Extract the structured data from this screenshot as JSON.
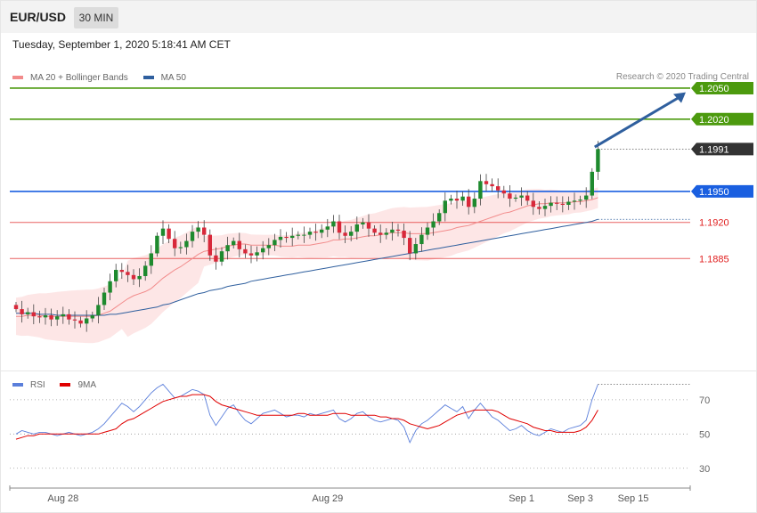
{
  "header": {
    "symbol": "EUR/USD",
    "timeframe": "30 MIN",
    "timestamp": "Tuesday, September 1, 2020 5:18:41 AM CET"
  },
  "legend": {
    "main": [
      {
        "label": "MA 20 + Bollinger Bands",
        "color": "#f28b8b"
      },
      {
        "label": "MA 50",
        "color": "#2f5f9e"
      }
    ],
    "rsi": [
      {
        "label": "RSI",
        "color": "#5b7fdb"
      },
      {
        "label": "9MA",
        "color": "#e00000"
      }
    ]
  },
  "credit": "Research © 2020 Trading Central",
  "chart_data": [
    {
      "type": "candlestick",
      "ylim": [
        1.178,
        1.2075
      ],
      "current_price": {
        "label": "1.1991",
        "value": 1.1991,
        "color": "#333333"
      },
      "levels": [
        {
          "label": "1.2050",
          "value": 1.205,
          "color": "#4c9a0e",
          "role": "resistance"
        },
        {
          "label": "1.2020",
          "value": 1.202,
          "color": "#4c9a0e",
          "role": "resistance"
        },
        {
          "label": "1.1950",
          "value": 1.195,
          "color": "#1a5fe0",
          "role": "pivot"
        },
        {
          "label": "1.1920",
          "value": 1.192,
          "color": "#e02020",
          "role": "support"
        },
        {
          "label": "1.1885",
          "value": 1.1885,
          "color": "#e02020",
          "role": "support"
        }
      ],
      "arrow": {
        "from_index": 98,
        "from_value": 1.1993,
        "to_value": 1.2046,
        "color": "#2f5f9e"
      },
      "closes": [
        1.1836,
        1.1831,
        1.1833,
        1.1829,
        1.1828,
        1.183,
        1.1826,
        1.1829,
        1.1831,
        1.1826,
        1.1825,
        1.1822,
        1.1827,
        1.183,
        1.184,
        1.1852,
        1.1863,
        1.1874,
        1.1872,
        1.1869,
        1.1865,
        1.1868,
        1.1878,
        1.189,
        1.1907,
        1.1914,
        1.1904,
        1.1895,
        1.1896,
        1.1902,
        1.1911,
        1.1915,
        1.1908,
        1.1888,
        1.1882,
        1.1892,
        1.1898,
        1.1902,
        1.1894,
        1.189,
        1.1888,
        1.1891,
        1.1895,
        1.1898,
        1.1903,
        1.1906,
        1.1905,
        1.1907,
        1.1908,
        1.1908,
        1.1911,
        1.191,
        1.1913,
        1.1916,
        1.1921,
        1.191,
        1.1907,
        1.1911,
        1.1918,
        1.192,
        1.1914,
        1.191,
        1.1908,
        1.191,
        1.1913,
        1.1912,
        1.1905,
        1.189,
        1.1899,
        1.1908,
        1.1915,
        1.1921,
        1.1929,
        1.1941,
        1.1943,
        1.1941,
        1.1945,
        1.1935,
        1.1943,
        1.196,
        1.1957,
        1.1955,
        1.1951,
        1.1948,
        1.1943,
        1.1944,
        1.1946,
        1.1941,
        1.1935,
        1.1933,
        1.1936,
        1.1939,
        1.1938,
        1.1937,
        1.194,
        1.1941,
        1.1942,
        1.1946,
        1.1969,
        1.1991
      ],
      "ma20": [
        1.1829,
        1.1829,
        1.183,
        1.183,
        1.183,
        1.1829,
        1.1829,
        1.1829,
        1.1829,
        1.1829,
        1.1829,
        1.1829,
        1.1829,
        1.1829,
        1.183,
        1.1832,
        1.1834,
        1.1838,
        1.1842,
        1.1846,
        1.1849,
        1.1851,
        1.1853,
        1.1856,
        1.1861,
        1.1866,
        1.187,
        1.1874,
        1.1877,
        1.1881,
        1.1885,
        1.1889,
        1.1892,
        1.1893,
        1.1894,
        1.1895,
        1.1897,
        1.1898,
        1.1899,
        1.1899,
        1.1898,
        1.1898,
        1.1898,
        1.1898,
        1.1898,
        1.1897,
        1.1897,
        1.1897,
        1.1898,
        1.1898,
        1.1898,
        1.1899,
        1.19,
        1.1901,
        1.1903,
        1.1903,
        1.1904,
        1.1904,
        1.1905,
        1.1906,
        1.1907,
        1.1907,
        1.1908,
        1.1909,
        1.191,
        1.191,
        1.191,
        1.1909,
        1.1909,
        1.1909,
        1.1909,
        1.191,
        1.1911,
        1.1912,
        1.1913,
        1.1915,
        1.1916,
        1.1917,
        1.1919,
        1.1921,
        1.1923,
        1.1925,
        1.1927,
        1.1929,
        1.193,
        1.1932,
        1.1934,
        1.1936,
        1.1937,
        1.1938,
        1.1938,
        1.1939,
        1.1939,
        1.1939,
        1.1939,
        1.194,
        1.194,
        1.1941,
        1.1942,
        1.1944
      ],
      "ma50": [
        1.1832,
        1.1832,
        1.1832,
        1.1832,
        1.1831,
        1.1831,
        1.1831,
        1.183,
        1.183,
        1.183,
        1.183,
        1.183,
        1.183,
        1.183,
        1.183,
        1.183,
        1.1831,
        1.1831,
        1.1832,
        1.1833,
        1.1834,
        1.1835,
        1.1836,
        1.1837,
        1.1838,
        1.184,
        1.1841,
        1.1843,
        1.1845,
        1.1847,
        1.1849,
        1.1851,
        1.1852,
        1.1854,
        1.1855,
        1.1856,
        1.1858,
        1.1859,
        1.186,
        1.1861,
        1.1863,
        1.1864,
        1.1865,
        1.1866,
        1.1867,
        1.1868,
        1.1869,
        1.187,
        1.1871,
        1.1872,
        1.1873,
        1.1874,
        1.1875,
        1.1876,
        1.1877,
        1.1878,
        1.1879,
        1.188,
        1.1881,
        1.1882,
        1.1883,
        1.1884,
        1.1885,
        1.1886,
        1.1887,
        1.1888,
        1.1889,
        1.189,
        1.1891,
        1.1892,
        1.1893,
        1.1894,
        1.1895,
        1.1896,
        1.1897,
        1.1898,
        1.1899,
        1.19,
        1.1901,
        1.1902,
        1.1903,
        1.1904,
        1.1905,
        1.1906,
        1.1907,
        1.1908,
        1.1909,
        1.191,
        1.1911,
        1.1912,
        1.1913,
        1.1914,
        1.1915,
        1.1916,
        1.1917,
        1.1918,
        1.1919,
        1.192,
        1.1921,
        1.1923
      ]
    },
    {
      "type": "line",
      "ylim": [
        20,
        85
      ],
      "ticks": [
        {
          "label": "70",
          "value": 70
        },
        {
          "label": "50",
          "value": 50
        },
        {
          "label": "30",
          "value": 30
        }
      ],
      "rsi": [
        50,
        52,
        51,
        50,
        51,
        51,
        50,
        49,
        50,
        51,
        50,
        49,
        50,
        51,
        53,
        56,
        60,
        64,
        68,
        66,
        63,
        66,
        70,
        74,
        77,
        79,
        75,
        71,
        72,
        74,
        76,
        75,
        73,
        61,
        55,
        60,
        65,
        67,
        62,
        58,
        56,
        59,
        62,
        63,
        64,
        62,
        60,
        61,
        61,
        60,
        62,
        61,
        62,
        63,
        64,
        59,
        57,
        59,
        62,
        63,
        60,
        58,
        57,
        58,
        59,
        58,
        54,
        45,
        52,
        56,
        58,
        61,
        64,
        67,
        65,
        63,
        66,
        59,
        64,
        68,
        64,
        60,
        58,
        55,
        52,
        53,
        55,
        52,
        50,
        49,
        51,
        53,
        52,
        51,
        53,
        54,
        55,
        58,
        70,
        79
      ],
      "ma9": [
        47,
        48,
        49,
        49,
        50,
        50,
        50,
        50,
        50,
        50,
        50,
        50,
        50,
        50,
        50,
        51,
        52,
        53,
        56,
        58,
        59,
        61,
        63,
        65,
        67,
        69,
        70,
        71,
        72,
        72,
        73,
        73,
        73,
        72,
        69,
        67,
        66,
        65,
        64,
        63,
        62,
        61,
        61,
        61,
        61,
        61,
        61,
        61,
        62,
        62,
        61,
        61,
        61,
        61,
        62,
        62,
        62,
        61,
        61,
        61,
        61,
        61,
        60,
        60,
        59,
        59,
        58,
        56,
        55,
        54,
        53,
        54,
        55,
        57,
        59,
        61,
        62,
        63,
        64,
        64,
        64,
        64,
        63,
        61,
        59,
        58,
        57,
        56,
        54,
        53,
        52,
        52,
        51,
        51,
        51,
        51,
        52,
        54,
        58,
        64
      ]
    }
  ],
  "x_axis": [
    {
      "label": "Aug 28",
      "index": 8
    },
    {
      "label": "Aug 29",
      "index": 53
    },
    {
      "label": "Sep 1",
      "index": 86
    },
    {
      "label": "Sep 3",
      "index": 96
    },
    {
      "label": "Sep 15",
      "index": 105
    }
  ]
}
